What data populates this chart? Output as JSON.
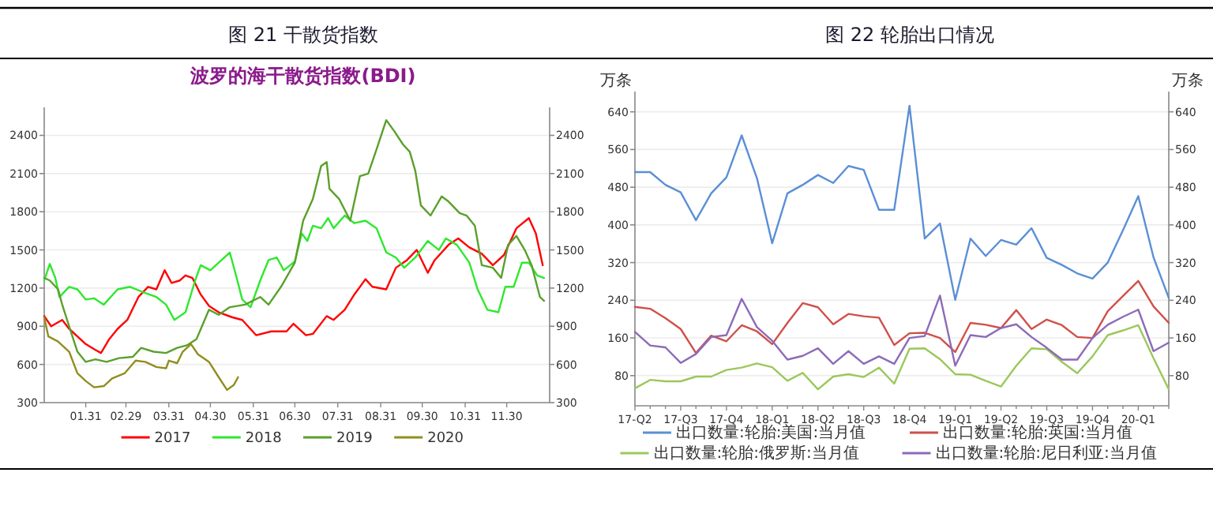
{
  "chart_data": [
    {
      "type": "line",
      "title": "图 21  干散货指数",
      "subtitle": "波罗的海干散货指数(BDI)",
      "xlim": [
        "--01-01",
        "--12-31"
      ],
      "xticks": [
        {
          "value": "--01-31",
          "label": "01.31"
        },
        {
          "value": "--02-29",
          "label": "02.29"
        },
        {
          "value": "--03-31",
          "label": "03.31"
        },
        {
          "value": "--04-30",
          "label": "04.30"
        },
        {
          "value": "--05-31",
          "label": "05.31"
        },
        {
          "value": "--06-30",
          "label": "06.30"
        },
        {
          "value": "--07-31",
          "label": "07.31"
        },
        {
          "value": "--08-31",
          "label": "08.31"
        },
        {
          "value": "--09-30",
          "label": "09.30"
        },
        {
          "value": "--10-31",
          "label": "10.31"
        },
        {
          "value": "--11-30",
          "label": "11.30"
        }
      ],
      "ylim": [
        300,
        2620
      ],
      "yticks": [
        300,
        600,
        900,
        1200,
        1500,
        1800,
        2100,
        2400
      ],
      "y2lim": [
        300,
        2620
      ],
      "y2ticks": [
        300,
        600,
        900,
        1200,
        1500,
        1800,
        2100,
        2400
      ],
      "grid": "y",
      "legend": "bottom",
      "series": [
        {
          "name": "2017",
          "color": "#ff0000",
          "x": [
            "--01-01",
            "--01-06",
            "--01-14",
            "--01-19",
            "--01-31",
            "--02-06",
            "--02-11",
            "--02-17",
            "--02-23",
            "--03-01",
            "--03-09",
            "--03-16",
            "--03-22",
            "--03-28",
            "--04-02",
            "--04-08",
            "--04-12",
            "--04-17",
            "--04-23",
            "--04-29",
            "--05-06",
            "--05-16",
            "--05-23",
            "--06-02",
            "--06-13",
            "--06-24",
            "--06-29",
            "--07-08",
            "--07-13",
            "--07-23",
            "--07-28",
            "--08-05",
            "--08-12",
            "--08-20",
            "--08-25",
            "--09-04",
            "--09-11",
            "--09-19",
            "--09-26",
            "--10-04",
            "--10-09",
            "--10-19",
            "--10-26",
            "--11-03",
            "--11-12",
            "--11-20",
            "--11-28",
            "--12-07",
            "--12-16",
            "--12-21",
            "--12-26"
          ],
          "values": [
            980,
            900,
            950,
            880,
            760,
            720,
            690,
            800,
            880,
            950,
            1130,
            1210,
            1190,
            1340,
            1240,
            1260,
            1300,
            1280,
            1150,
            1060,
            1010,
            970,
            950,
            830,
            860,
            860,
            920,
            830,
            840,
            980,
            950,
            1030,
            1150,
            1270,
            1210,
            1190,
            1360,
            1420,
            1500,
            1320,
            1420,
            1540,
            1590,
            1520,
            1470,
            1380,
            1460,
            1670,
            1750,
            1630,
            1380
          ]
        },
        {
          "name": "2018",
          "color": "#2ee82e",
          "x": [
            "--01-01",
            "--01-05",
            "--01-09",
            "--01-12",
            "--01-19",
            "--01-25",
            "--01-31",
            "--02-06",
            "--02-13",
            "--02-23",
            "--03-03",
            "--03-12",
            "--03-22",
            "--03-29",
            "--04-04",
            "--04-12",
            "--04-19",
            "--04-23",
            "--04-30",
            "--05-06",
            "--05-14",
            "--05-19",
            "--05-23",
            "--05-29",
            "--06-05",
            "--06-11",
            "--06-17",
            "--06-22",
            "--06-30",
            "--07-05",
            "--07-09",
            "--07-13",
            "--07-19",
            "--07-24",
            "--07-28",
            "--08-05",
            "--08-12",
            "--08-20",
            "--08-28",
            "--09-04",
            "--09-11",
            "--09-17",
            "--09-25",
            "--10-04",
            "--10-12",
            "--10-17",
            "--10-25",
            "--11-03",
            "--11-09",
            "--11-16",
            "--11-24",
            "--11-29",
            "--12-05",
            "--12-11",
            "--12-16",
            "--12-22",
            "--12-27"
          ],
          "values": [
            1260,
            1390,
            1280,
            1130,
            1210,
            1190,
            1110,
            1120,
            1070,
            1190,
            1210,
            1170,
            1130,
            1070,
            950,
            1010,
            1260,
            1380,
            1340,
            1400,
            1480,
            1280,
            1110,
            1050,
            1260,
            1420,
            1440,
            1340,
            1410,
            1630,
            1570,
            1690,
            1670,
            1750,
            1670,
            1770,
            1710,
            1730,
            1670,
            1480,
            1440,
            1360,
            1440,
            1570,
            1500,
            1590,
            1540,
            1400,
            1190,
            1030,
            1010,
            1210,
            1210,
            1400,
            1400,
            1300,
            1280
          ]
        },
        {
          "name": "2019",
          "color": "#5aa02c",
          "x": [
            "--01-01",
            "--01-05",
            "--01-11",
            "--01-14",
            "--01-19",
            "--01-25",
            "--01-31",
            "--02-07",
            "--02-15",
            "--02-24",
            "--03-05",
            "--03-11",
            "--03-20",
            "--03-29",
            "--04-06",
            "--04-13",
            "--04-20",
            "--04-29",
            "--05-06",
            "--05-14",
            "--05-25",
            "--06-05",
            "--06-11",
            "--06-20",
            "--06-30",
            "--07-06",
            "--07-13",
            "--07-19",
            "--07-23",
            "--07-25",
            "--08-01",
            "--08-09",
            "--08-16",
            "--08-22",
            "--08-28",
            "--09-04",
            "--09-10",
            "--09-16",
            "--09-21",
            "--09-25",
            "--09-29",
            "--10-06",
            "--10-14",
            "--10-19",
            "--10-27",
            "--11-01",
            "--11-07",
            "--11-12",
            "--11-20",
            "--11-26",
            "--12-01",
            "--12-07",
            "--12-13",
            "--12-18",
            "--12-24",
            "--12-27"
          ],
          "values": [
            1280,
            1260,
            1190,
            1070,
            900,
            700,
            620,
            640,
            620,
            650,
            660,
            730,
            700,
            690,
            730,
            750,
            800,
            1030,
            990,
            1050,
            1070,
            1130,
            1070,
            1210,
            1400,
            1730,
            1900,
            2160,
            2190,
            1980,
            1900,
            1730,
            2080,
            2100,
            2290,
            2520,
            2430,
            2330,
            2270,
            2120,
            1850,
            1770,
            1920,
            1880,
            1790,
            1770,
            1690,
            1380,
            1360,
            1280,
            1540,
            1610,
            1500,
            1380,
            1130,
            1100
          ]
        },
        {
          "name": "2020",
          "color": "#8f8f1f",
          "x": [
            "--01-01",
            "--01-04",
            "--01-11",
            "--01-19",
            "--01-25",
            "--01-31",
            "--02-06",
            "--02-13",
            "--02-19",
            "--02-28",
            "--03-07",
            "--03-14",
            "--03-22",
            "--03-29",
            "--03-31",
            "--04-06",
            "--04-10",
            "--04-16",
            "--04-21",
            "--04-29",
            "--05-06",
            "--05-12",
            "--05-17",
            "--05-20"
          ],
          "values": [
            970,
            820,
            780,
            700,
            530,
            470,
            420,
            430,
            490,
            530,
            630,
            620,
            580,
            570,
            630,
            610,
            700,
            760,
            680,
            620,
            500,
            400,
            440,
            500
          ]
        }
      ]
    },
    {
      "type": "line",
      "title": "图 22  轮胎出口情况",
      "ylabel": "万条",
      "y2label": "万条",
      "categories": [
        "17-Q2",
        null,
        null,
        "17-Q3",
        null,
        null,
        "17-Q4",
        null,
        null,
        "18-Q1",
        null,
        null,
        "18-Q2",
        null,
        null,
        "18-Q3",
        null,
        null,
        "18-Q4",
        null,
        null,
        "19-Q1",
        null,
        null,
        "19-Q2",
        null,
        null,
        "19-Q3",
        null,
        null,
        "19-Q4",
        null,
        null,
        "20-Q1",
        null,
        null
      ],
      "ylim": [
        16,
        683
      ],
      "yticks": [
        80,
        160,
        240,
        320,
        400,
        480,
        560,
        640
      ],
      "y2lim": [
        16,
        683
      ],
      "y2ticks": [
        80,
        160,
        240,
        320,
        400,
        480,
        560,
        640
      ],
      "grid": "y",
      "legend": "bottom",
      "series": [
        {
          "name": "出口数量:轮胎:美国:当月值",
          "color": "#5b8fd6",
          "values": [
            512,
            512,
            485,
            469,
            410,
            467,
            501,
            590,
            499,
            361,
            467,
            485,
            506,
            489,
            525,
            517,
            432,
            432,
            653,
            371,
            403,
            241,
            371,
            334,
            368,
            358,
            393,
            330,
            315,
            297,
            286,
            320,
            389,
            461,
            331,
            245
          ]
        },
        {
          "name": "出口数量:轮胎:英国:当月值",
          "color": "#d0504a",
          "values": [
            226,
            222,
            202,
            179,
            128,
            165,
            153,
            187,
            174,
            147,
            192,
            234,
            225,
            189,
            211,
            206,
            203,
            145,
            170,
            171,
            160,
            130,
            192,
            188,
            181,
            219,
            179,
            199,
            187,
            162,
            160,
            217,
            249,
            281,
            227,
            192
          ]
        },
        {
          "name": "出口数量:轮胎:俄罗斯:当月值",
          "color": "#9bc85a",
          "values": [
            53,
            71,
            68,
            68,
            78,
            78,
            92,
            97,
            106,
            98,
            69,
            86,
            51,
            78,
            83,
            77,
            97,
            63,
            137,
            138,
            115,
            83,
            82,
            69,
            57,
            101,
            138,
            136,
            109,
            85,
            121,
            166,
            176,
            187,
            117,
            51
          ]
        },
        {
          "name": "出口数量:轮胎:尼日利亚:当月值",
          "color": "#8c6bb8",
          "values": [
            173,
            144,
            140,
            107,
            126,
            162,
            166,
            243,
            183,
            154,
            114,
            122,
            138,
            105,
            132,
            105,
            121,
            105,
            160,
            164,
            250,
            101,
            166,
            162,
            181,
            189,
            162,
            139,
            114,
            114,
            160,
            188,
            205,
            220,
            132,
            150
          ]
        }
      ]
    }
  ]
}
